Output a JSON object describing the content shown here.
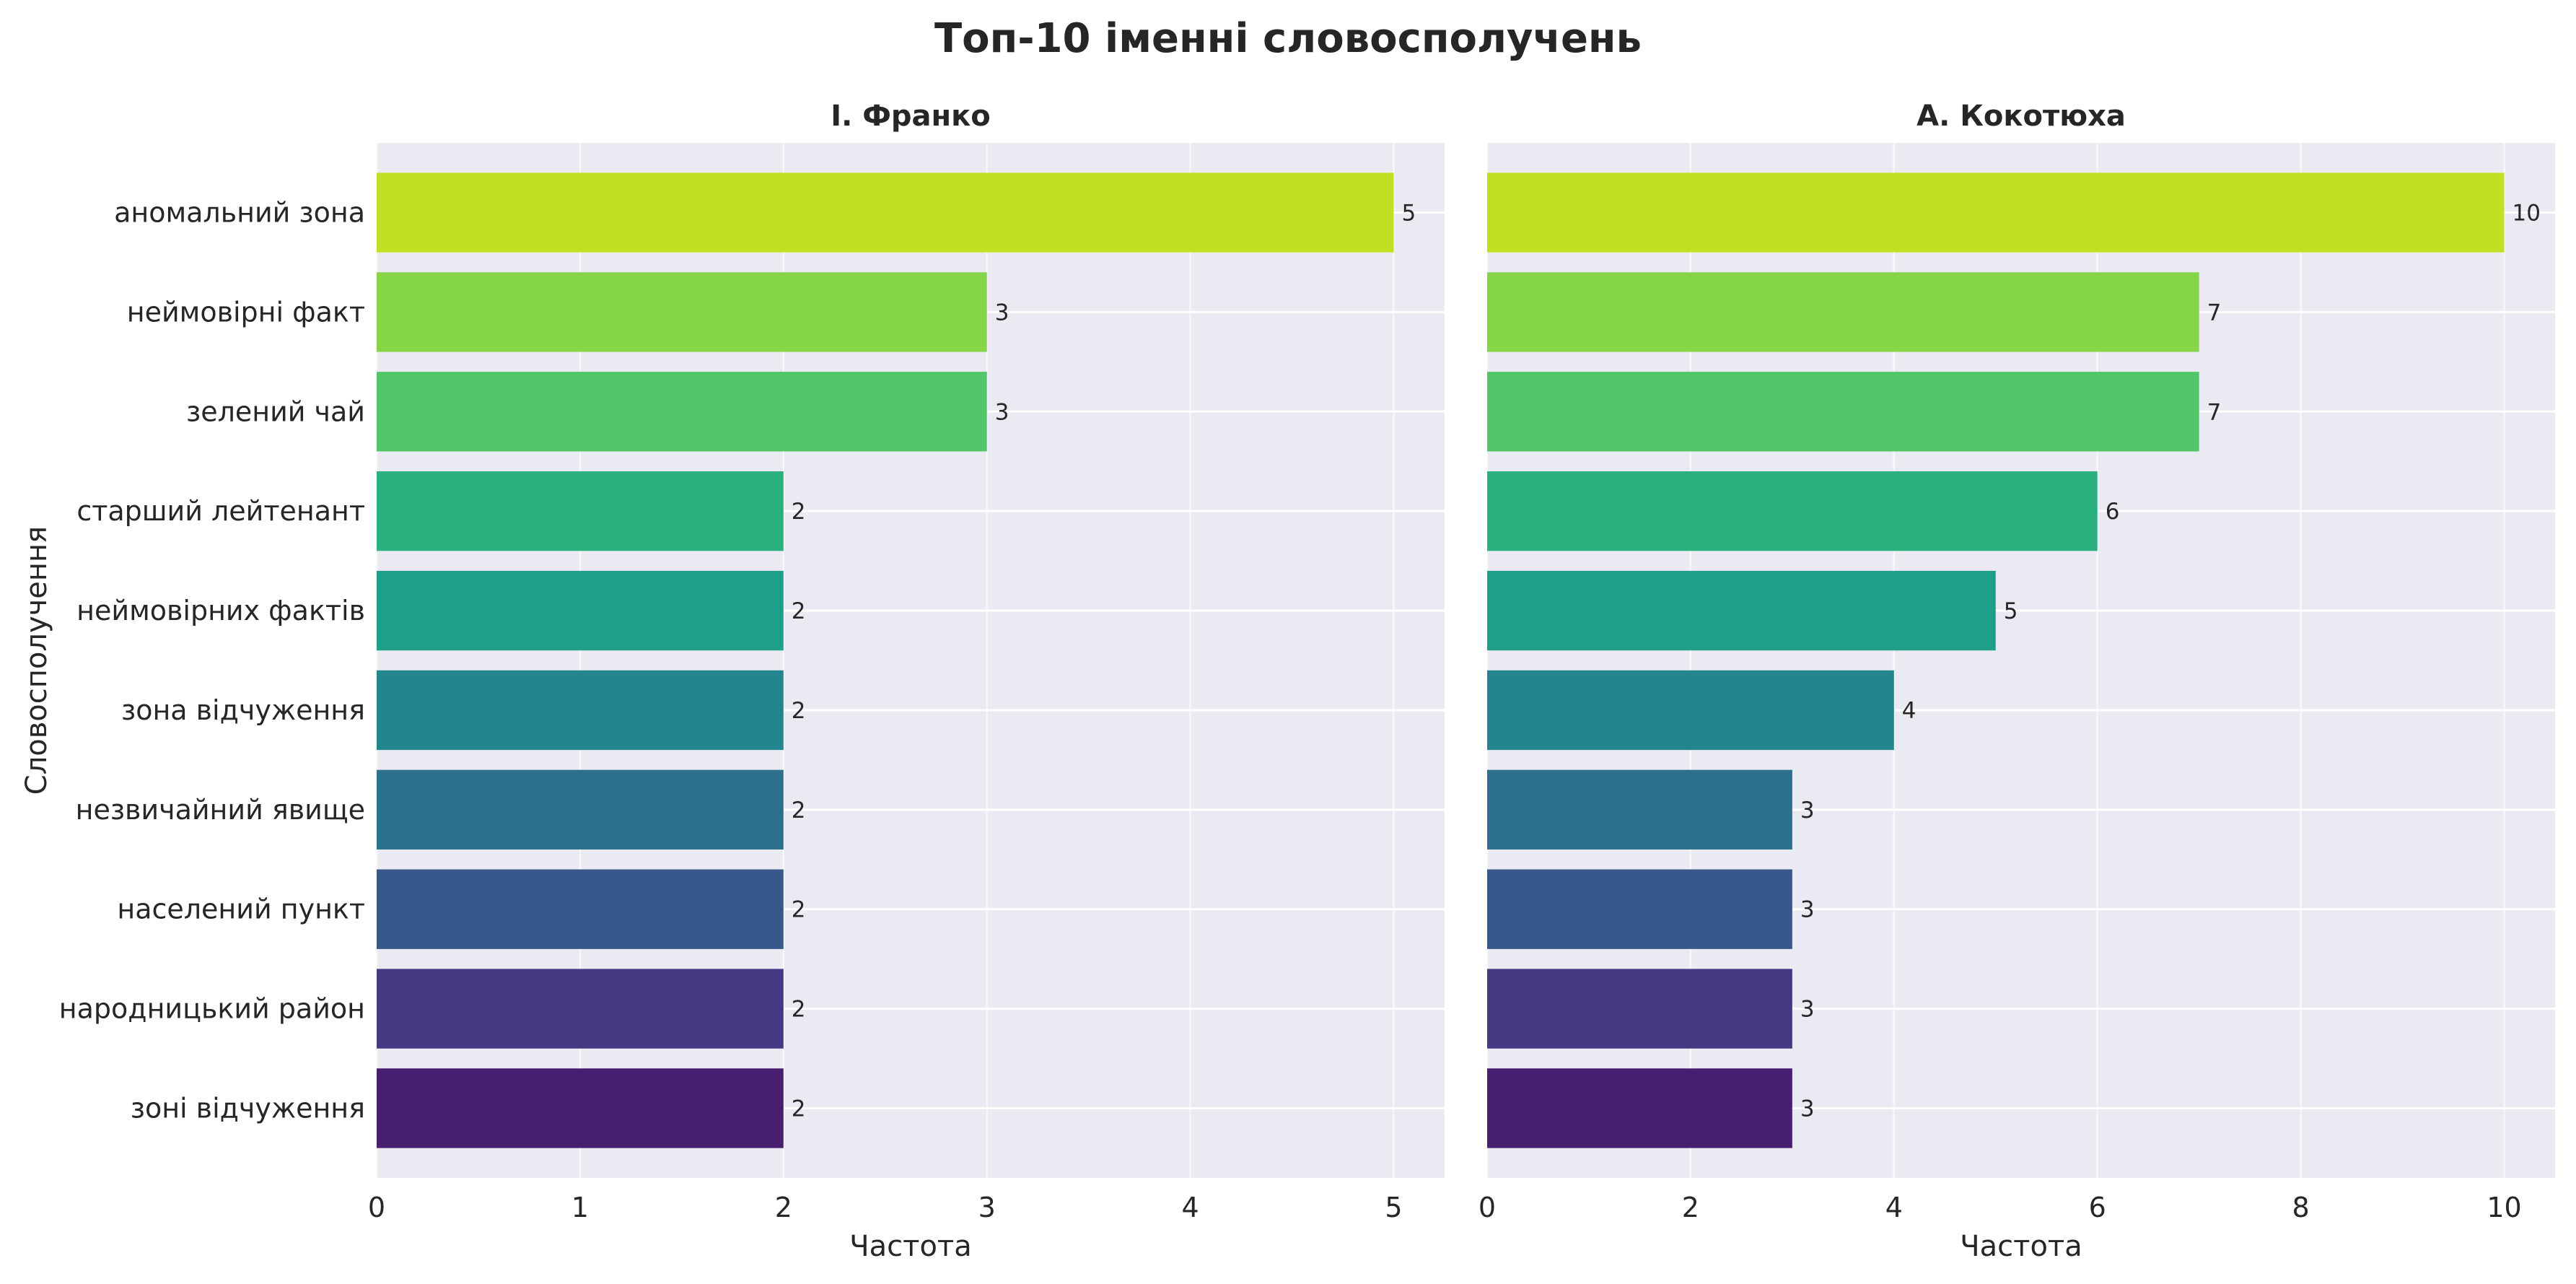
{
  "chart_data": {
    "type": "bar",
    "orientation": "horizontal",
    "title": "Топ-10 іменні словосполучень",
    "grid": true,
    "categories": [
      "аномальний зона",
      "неймовірні факт",
      "зелений чай",
      "старший лейтенант",
      "неймовірних фактів",
      "зона відчуження",
      "незвичайний явище",
      "населений пункт",
      "народницький район",
      "зоні відчуження"
    ],
    "colors": [
      "#c2e023",
      "#86d549",
      "#52c569",
      "#2ab07f",
      "#1f9e89",
      "#25858e",
      "#2d708e",
      "#38588c",
      "#443983",
      "#481f70"
    ],
    "panels": [
      {
        "title": "І. Франко",
        "ylabel": "Словосполучення",
        "xlabel": "Частота",
        "xlim": [
          0,
          5.25
        ],
        "xticks": [
          0,
          1,
          2,
          3,
          4,
          5
        ],
        "values": [
          5,
          3,
          3,
          2,
          2,
          2,
          2,
          2,
          2,
          2
        ],
        "show_category_labels": true
      },
      {
        "title": "А. Кокотюха",
        "ylabel": "",
        "xlabel": "Частота",
        "xlim": [
          0,
          10.5
        ],
        "xticks": [
          0,
          2,
          4,
          6,
          8,
          10
        ],
        "values": [
          10,
          7,
          7,
          6,
          5,
          4,
          3,
          3,
          3,
          3
        ],
        "show_category_labels": false
      }
    ]
  }
}
